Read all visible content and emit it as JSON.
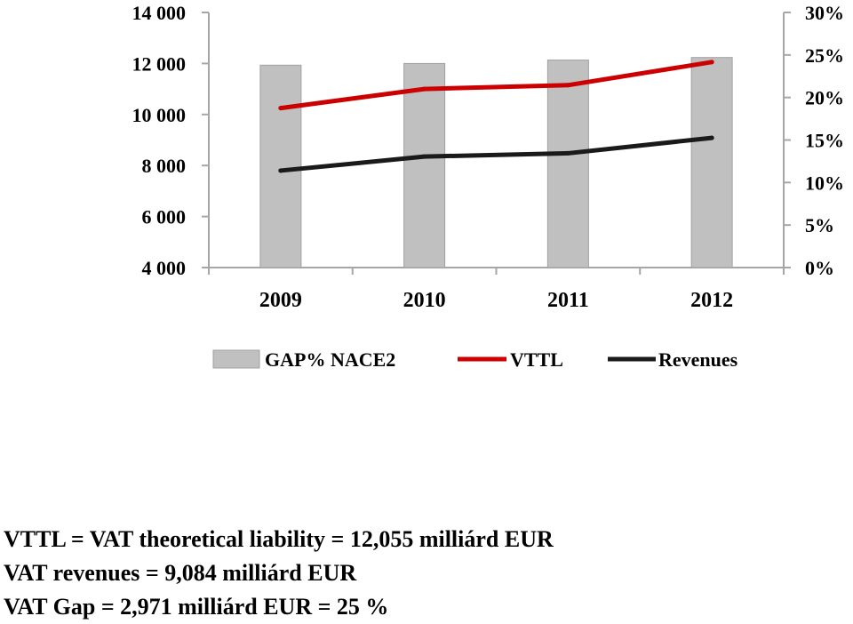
{
  "chart_data": {
    "type": "bar+line",
    "categories": [
      "2009",
      "2010",
      "2011",
      "2012"
    ],
    "bar_series": {
      "name": "GAP% NACE2",
      "axis": "right",
      "values": [
        23.8,
        24.0,
        24.4,
        24.7
      ],
      "color": "#c0c0c0"
    },
    "line_series": [
      {
        "name": "VTTL",
        "axis": "left",
        "values": [
          10250,
          11000,
          11150,
          12055
        ],
        "color": "#cc0000"
      },
      {
        "name": "Revenues",
        "axis": "left",
        "values": [
          7800,
          8350,
          8480,
          9084
        ],
        "color": "#1a1a1a"
      }
    ],
    "y_left": {
      "min": 4000,
      "max": 14000,
      "ticks": [
        "4 000",
        "6 000",
        "8 000",
        "10 000",
        "12 000",
        "14 000"
      ]
    },
    "y_right": {
      "min": 0,
      "max": 30,
      "ticks": [
        "0%",
        "5%",
        "10%",
        "15%",
        "20%",
        "25%",
        "30%"
      ]
    },
    "legend": {
      "placement": "bottom",
      "items": [
        "GAP% NACE2",
        "VTTL",
        "Revenues"
      ]
    }
  },
  "notes": {
    "line1": "VTTL = VAT theoretical liability = 12,055 milliárd EUR",
    "line2": "VAT revenues = 9,084 milliárd EUR",
    "line3": "VAT Gap = 2,971 milliárd EUR = 25 %"
  }
}
